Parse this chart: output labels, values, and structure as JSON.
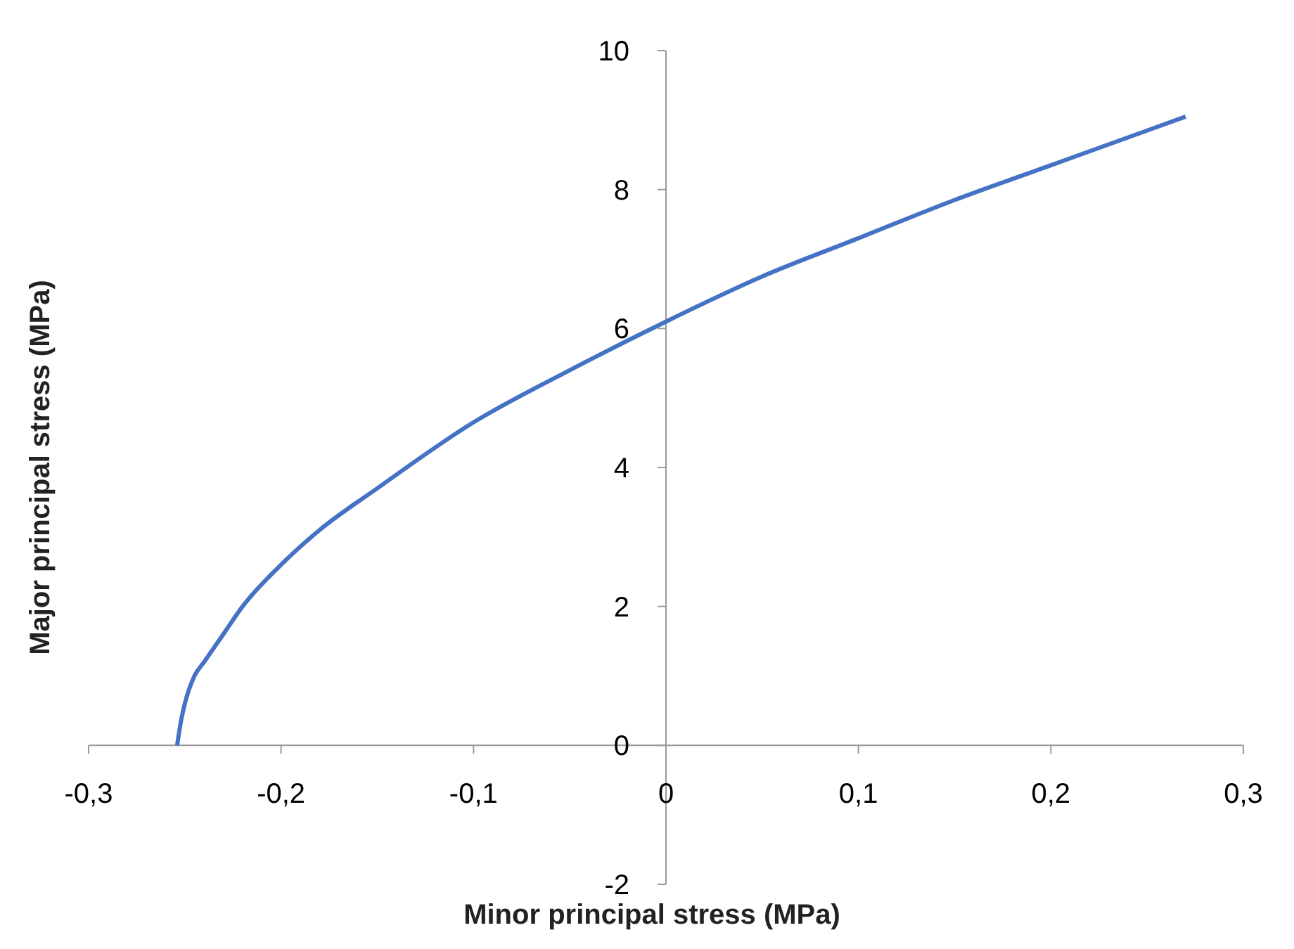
{
  "chart_data": {
    "type": "line",
    "xlabel": "Minor principal stress (MPa)",
    "ylabel": "Major principal stress (MPa)",
    "x": [
      -0.254,
      -0.252,
      -0.25,
      -0.245,
      -0.24,
      -0.23,
      -0.22,
      -0.2,
      -0.18,
      -0.15,
      -0.1,
      -0.05,
      0,
      0.05,
      0.1,
      0.15,
      0.2,
      0.27
    ],
    "series": [
      {
        "color": "#4472c4",
        "values": [
          0,
          0.35,
          0.6,
          1.0,
          1.2,
          1.6,
          2.0,
          2.6,
          3.1,
          3.7,
          4.65,
          5.4,
          6.1,
          6.75,
          7.3,
          7.85,
          8.35,
          9.05
        ]
      }
    ],
    "xlim": [
      -0.3,
      0.3
    ],
    "xticks": [
      {
        "value": -0.3,
        "label": "-0,3"
      },
      {
        "value": -0.2,
        "label": "-0,2"
      },
      {
        "value": -0.1,
        "label": "-0,1"
      },
      0,
      {
        "value": 0.1,
        "label": "0,1"
      },
      {
        "value": 0.2,
        "label": "0,2"
      },
      {
        "value": 0.3,
        "label": "0,3"
      }
    ],
    "ylim": [
      -2,
      10
    ],
    "yticks": [
      -2,
      0,
      2,
      4,
      6,
      8,
      10
    ]
  }
}
